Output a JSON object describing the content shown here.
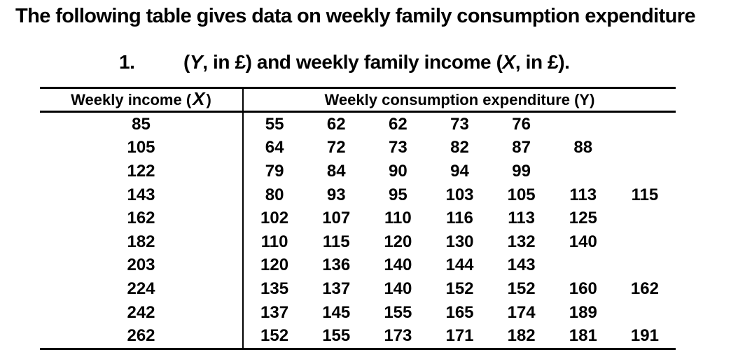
{
  "title": "The following table gives data on weekly family consumption expenditure",
  "item_number": "1.",
  "subtitle": {
    "pre": "(",
    "y_var": "Y",
    "mid": ", in £) and weekly family income (",
    "x_var": "X",
    "post": ", in £)."
  },
  "table": {
    "income_header": {
      "pre": "Weekly income ( ",
      "var": "X",
      "post": " )"
    },
    "expenditure_header": "Weekly consumption expenditure (Y)",
    "rows": [
      {
        "income": "85",
        "values": [
          "55",
          "62",
          "62",
          "73",
          "76"
        ]
      },
      {
        "income": "105",
        "values": [
          "64",
          "72",
          "73",
          "82",
          "87",
          "88"
        ]
      },
      {
        "income": "122",
        "values": [
          "79",
          "84",
          "90",
          "94",
          "99"
        ]
      },
      {
        "income": "143",
        "values": [
          "80",
          "93",
          "95",
          "103",
          "105",
          "113",
          "115"
        ]
      },
      {
        "income": "162",
        "values": [
          "102",
          "107",
          "110",
          "116",
          "113",
          "125"
        ]
      },
      {
        "income": "182",
        "values": [
          "110",
          "115",
          "120",
          "130",
          "132",
          "140"
        ]
      },
      {
        "income": "203",
        "values": [
          "120",
          "136",
          "140",
          "144",
          "143"
        ]
      },
      {
        "income": "224",
        "values": [
          "135",
          "137",
          "140",
          "152",
          "152",
          "160",
          "162"
        ]
      },
      {
        "income": "242",
        "values": [
          "137",
          "145",
          "155",
          "165",
          "174",
          "189"
        ]
      },
      {
        "income": "262",
        "values": [
          "152",
          "155",
          "173",
          "171",
          "182",
          "181",
          "191"
        ]
      }
    ]
  },
  "colors": {
    "text": "#000000",
    "background": "#ffffff",
    "border": "#000000"
  }
}
